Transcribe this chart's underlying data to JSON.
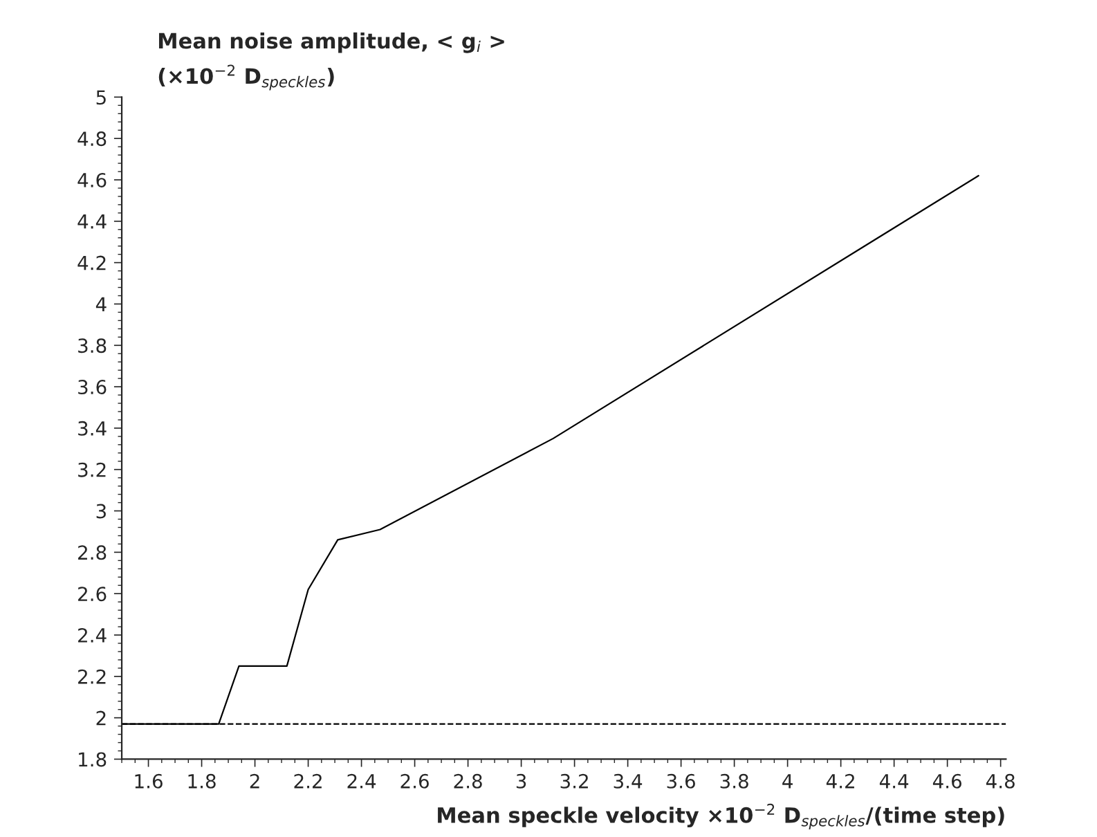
{
  "chart_data": {
    "type": "line",
    "ylabel": "Mean noise amplitude, < g$_{i}$ >\n(×10$^{−2}$ D$_{speckles}$)",
    "xlabel": "Mean speckle velocity ×10$^{−2}$ D$_{speckles}$/(time step)",
    "series": [
      {
        "color": "#000000",
        "x": [
          1.5,
          1.864,
          1.94,
          2.12,
          2.2,
          2.311,
          2.47,
          3.12,
          4.717
        ],
        "values": [
          1.97,
          1.97,
          2.25,
          2.25,
          2.62,
          2.86,
          2.91,
          3.35,
          4.62
        ]
      }
    ],
    "ref_lines": [
      {
        "axis": "y",
        "value": 1.97,
        "line_style": "dashed",
        "color": "#000000"
      }
    ],
    "xlim": [
      1.5,
      4.82
    ],
    "ylim": [
      1.8,
      5
    ],
    "xticks": [
      1.6,
      1.8,
      2,
      2.2,
      2.4,
      2.6,
      2.8,
      3,
      3.2,
      3.4,
      3.6,
      3.8,
      4,
      4.2,
      4.4,
      4.6,
      4.8
    ],
    "yticks": [
      1.8,
      2,
      2.2,
      2.4,
      2.6,
      2.8,
      3,
      3.2,
      3.4,
      3.6,
      3.8,
      4,
      4.2,
      4.4,
      4.6,
      4.8,
      5
    ],
    "grid": false,
    "legend": false,
    "marker": "none",
    "line_style": "solid"
  }
}
